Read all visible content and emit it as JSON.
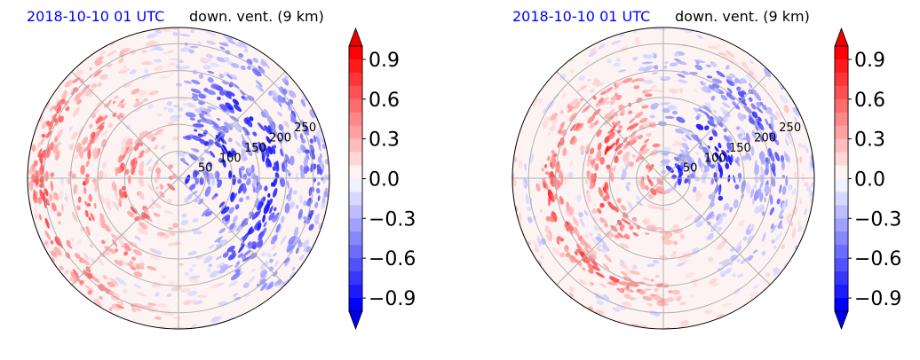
{
  "chart_data": [
    {
      "type": "heatmap",
      "projection": "polar",
      "title_left": "2018-10-10 01 UTC",
      "title_right": "down. vent. (9 km)",
      "radial_ticks": [
        "50",
        "100",
        "150",
        "200",
        "250"
      ],
      "radial_tick_values": [
        50,
        100,
        150,
        200,
        250
      ],
      "rlim": [
        0,
        280
      ],
      "colorbar": {
        "ticks": [
          "0.9",
          "0.6",
          "0.3",
          "0.0",
          "−0.3",
          "−0.6",
          "−0.9"
        ],
        "tick_values": [
          0.9,
          0.6,
          0.3,
          0.0,
          -0.3,
          -0.6,
          -0.9
        ],
        "range": [
          -1.0,
          1.0
        ],
        "extend": "both",
        "cmap": "bwr"
      },
      "grid": true
    },
    {
      "type": "heatmap",
      "projection": "polar",
      "title_left": "2018-10-10 01 UTC",
      "title_right": "down. vent. (9 km)",
      "radial_ticks": [
        "50",
        "100",
        "150",
        "200",
        "250"
      ],
      "radial_tick_values": [
        50,
        100,
        150,
        200,
        250
      ],
      "rlim": [
        0,
        280
      ],
      "colorbar": {
        "ticks": [
          "0.9",
          "0.6",
          "0.3",
          "0.0",
          "−0.3",
          "−0.6",
          "−0.9"
        ],
        "tick_values": [
          0.9,
          0.6,
          0.3,
          0.0,
          -0.3,
          -0.6,
          -0.9
        ],
        "range": [
          -1.0,
          1.0
        ],
        "extend": "both",
        "cmap": "bwr"
      },
      "grid": true
    }
  ],
  "colors": {
    "title_left": "#0000ff",
    "title_right": "#000000",
    "positive": "#ff0000",
    "negative": "#0000ff",
    "neutral": "#ffffff",
    "grid": "#b0b0b0"
  }
}
